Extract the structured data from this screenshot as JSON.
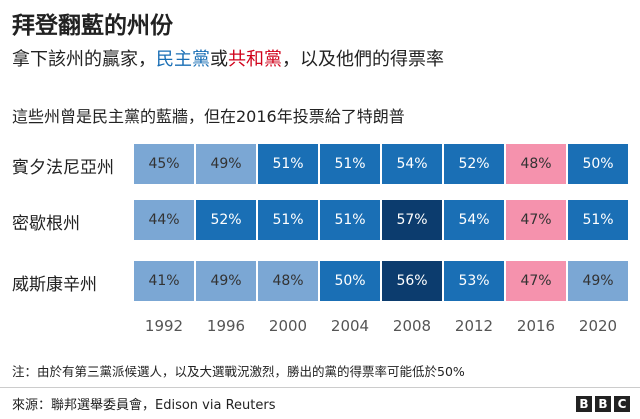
{
  "title": "拜登翻藍的州份",
  "subtitle": {
    "prefix": "拿下該州的贏家，",
    "dem": "民主黨",
    "middle": "或",
    "rep": "共和黨",
    "suffix": "，以及他們的得票率"
  },
  "intro": "這些州曾是民主黨的藍牆，但在2016年投票給了特朗普",
  "colors": {
    "light_blue": "#7ba7d4",
    "mid_blue": "#1a6fb5",
    "dark_blue": "#0c3c6e",
    "pink": "#f592ad",
    "text_dark": "#333333",
    "text_light": "#ffffff"
  },
  "chart_data": {
    "type": "heatmap",
    "title": "拜登翻藍的州份",
    "x": [
      "1992",
      "1996",
      "2000",
      "2004",
      "2008",
      "2012",
      "2016",
      "2020"
    ],
    "rows": [
      {
        "state": "賓夕法尼亞州",
        "winner": [
          "dem",
          "dem",
          "dem",
          "dem",
          "dem",
          "dem",
          "rep",
          "dem"
        ],
        "values": [
          45,
          49,
          51,
          51,
          54,
          52,
          48,
          50
        ],
        "labels": [
          "45%",
          "49%",
          "51%",
          "51%",
          "54%",
          "52%",
          "48%",
          "50%"
        ]
      },
      {
        "state": "密歇根州",
        "winner": [
          "dem",
          "dem",
          "dem",
          "dem",
          "dem",
          "dem",
          "rep",
          "dem"
        ],
        "values": [
          44,
          52,
          51,
          51,
          57,
          54,
          47,
          51
        ],
        "labels": [
          "44%",
          "52%",
          "51%",
          "51%",
          "57%",
          "54%",
          "47%",
          "51%"
        ]
      },
      {
        "state": "威斯康辛州",
        "winner": [
          "dem",
          "dem",
          "dem",
          "dem",
          "dem",
          "dem",
          "rep",
          "dem"
        ],
        "values": [
          41,
          49,
          48,
          50,
          56,
          53,
          47,
          49
        ],
        "labels": [
          "41%",
          "49%",
          "48%",
          "50%",
          "56%",
          "53%",
          "47%",
          "49%"
        ]
      }
    ],
    "legend": [
      "民主黨",
      "共和黨"
    ]
  },
  "note": "注：由於有第三黨派候選人，以及大選戰況激烈，勝出的黨的得票率可能低於50%",
  "source": "來源：聯邦選舉委員會，Edison via Reuters",
  "logo": [
    "B",
    "B",
    "C"
  ]
}
